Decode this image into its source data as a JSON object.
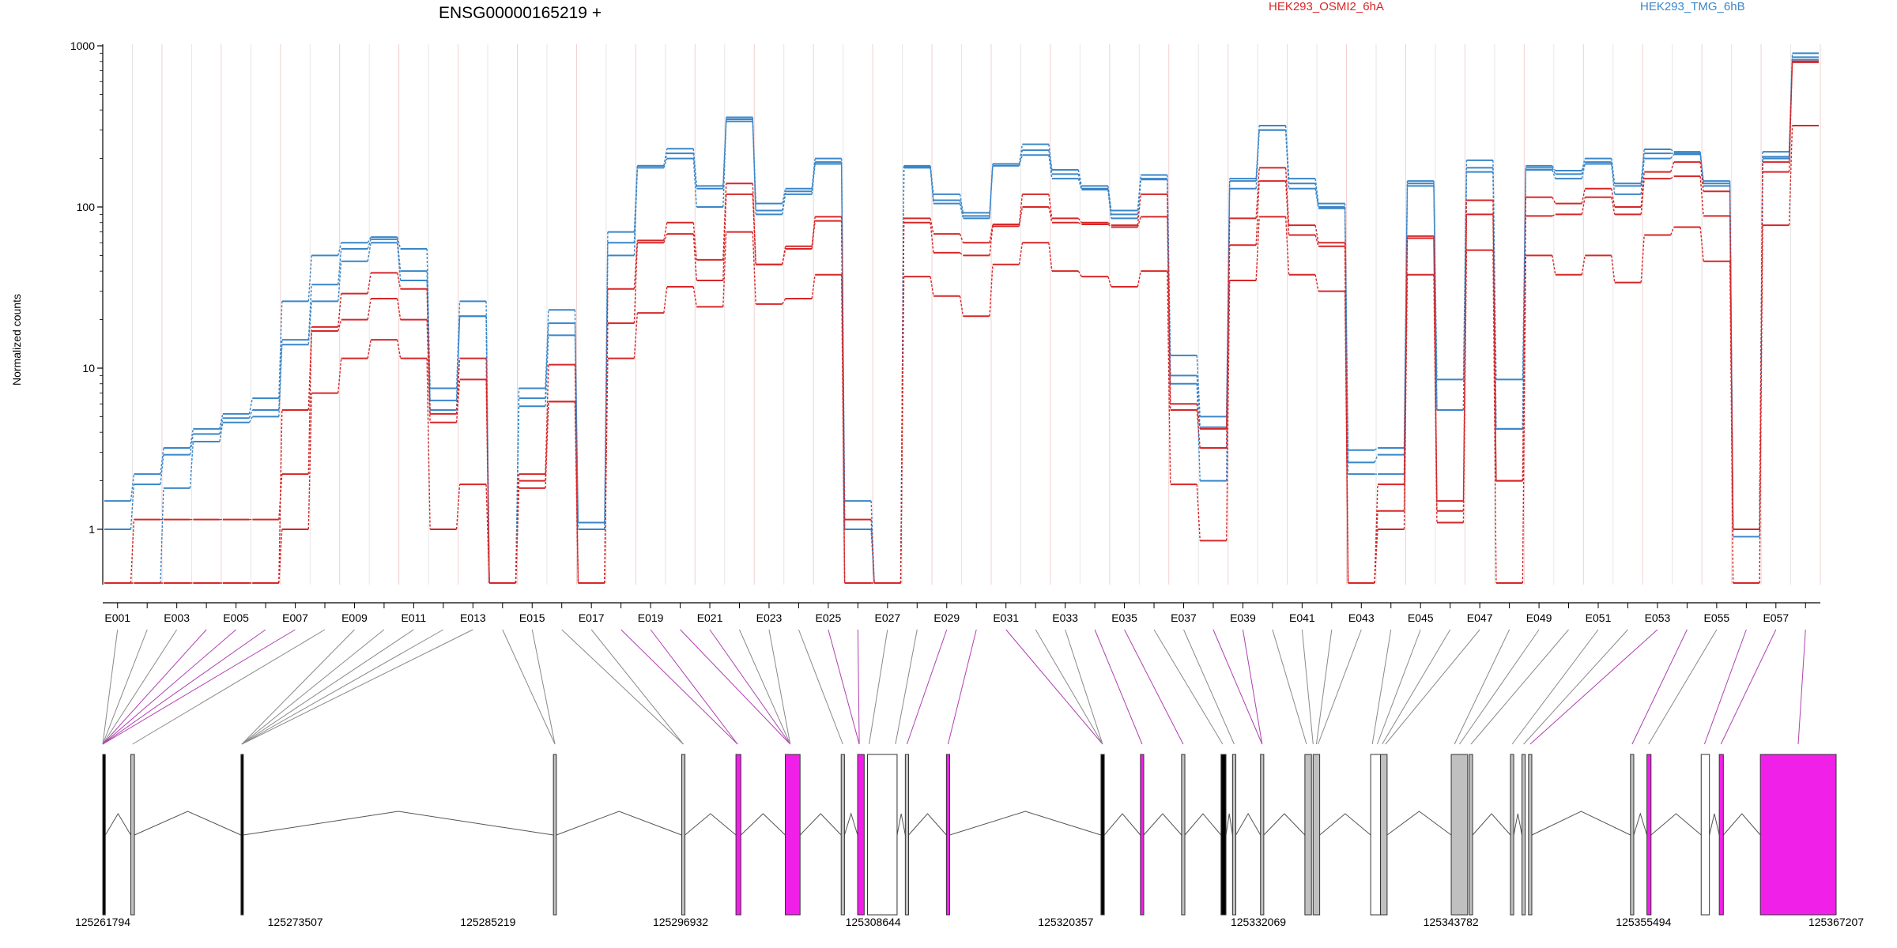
{
  "title": "ENSG00000165219 +",
  "legend": [
    {
      "name": "HEK293_OSMI2_6hA",
      "color": "#d62728"
    },
    {
      "name": "HEK293_TMG_6hB",
      "color": "#3a86c8"
    }
  ],
  "colors": {
    "red_series": "#d62728",
    "blue_series": "#3a86c8",
    "exon_highlight": "#f020e8",
    "exon_grey": "#c0c0c0"
  },
  "chart_data": {
    "type": "line",
    "subtype": "step",
    "ylabel": "Normalized counts",
    "yscale": "log",
    "ylim": [
      0.5,
      1000
    ],
    "yticks": [
      1,
      10,
      100,
      1000
    ],
    "ytick_labels": [
      "1",
      "10",
      "100",
      "1000"
    ],
    "x_tick_labels": [
      "E001",
      "E003",
      "E005",
      "E007",
      "E009",
      "E011",
      "E013",
      "E015",
      "E017",
      "E019",
      "E021",
      "E023",
      "E025",
      "E027",
      "E029",
      "E031",
      "E033",
      "E035",
      "E037",
      "E039",
      "E041",
      "E043",
      "E045",
      "E047",
      "E049",
      "E051",
      "E053",
      "E055",
      "E057"
    ],
    "exons": [
      "E001",
      "E002",
      "E003",
      "E004",
      "E005",
      "E006",
      "E007",
      "E008",
      "E009",
      "E010",
      "E011",
      "E012",
      "E013",
      "E014",
      "E015",
      "E016",
      "E017",
      "E018",
      "E019",
      "E020",
      "E021",
      "E022",
      "E023",
      "E024",
      "E025",
      "E026",
      "E027",
      "E028",
      "E029",
      "E030",
      "E031",
      "E032",
      "E033",
      "E034",
      "E035",
      "E036",
      "E037",
      "E038",
      "E039",
      "E040",
      "E041",
      "E042",
      "E043",
      "E044",
      "E045",
      "E046",
      "E047",
      "E048",
      "E049",
      "E050",
      "E051",
      "E052",
      "E053",
      "E054",
      "E055",
      "E056",
      "E057",
      "E058"
    ],
    "series": [
      {
        "group": "HEK293_TMG_6hB",
        "values": [
          1.5,
          2.2,
          3.2,
          4.2,
          5.2,
          6.5,
          26,
          50,
          60,
          65,
          55,
          7.5,
          26,
          0.5,
          7.5,
          23,
          1.1,
          70,
          180,
          230,
          135,
          360,
          105,
          130,
          200,
          1.5,
          0.5,
          180,
          120,
          92,
          185,
          245,
          170,
          135,
          95,
          158,
          12,
          5,
          150,
          320,
          150,
          105,
          3.1,
          3.2,
          145,
          8.5,
          195,
          8.5,
          180,
          168,
          200,
          140,
          228,
          220,
          145,
          1.0,
          220,
          900
        ]
      },
      {
        "group": "HEK293_TMG_6hB",
        "values": [
          1.0,
          1.9,
          2.9,
          3.9,
          4.9,
          5.5,
          15,
          33,
          55,
          63,
          40,
          6.3,
          21,
          0.5,
          6.5,
          19,
          1.0,
          60,
          180,
          215,
          130,
          350,
          95,
          125,
          190,
          1.0,
          0.5,
          178,
          110,
          88,
          185,
          225,
          160,
          130,
          90,
          150,
          9,
          4.3,
          145,
          300,
          140,
          100,
          2.6,
          2.9,
          140,
          5.5,
          175,
          4.2,
          175,
          160,
          190,
          135,
          215,
          215,
          140,
          1.0,
          205,
          850
        ]
      },
      {
        "group": "HEK293_TMG_6hB",
        "values": [
          0.5,
          0.5,
          1.8,
          3.5,
          4.6,
          5.0,
          14,
          26,
          46,
          60,
          35,
          5.5,
          21,
          0.5,
          5.8,
          16,
          1.0,
          50,
          175,
          200,
          100,
          340,
          90,
          120,
          185,
          1.0,
          0.5,
          175,
          105,
          85,
          180,
          210,
          150,
          128,
          85,
          148,
          8,
          2.0,
          130,
          300,
          130,
          98,
          2.2,
          2.2,
          135,
          5.5,
          165,
          4.2,
          170,
          150,
          185,
          120,
          200,
          212,
          135,
          0.9,
          200,
          820
        ]
      },
      {
        "group": "HEK293_OSMI2_6hA",
        "values": [
          0.5,
          1.15,
          1.15,
          1.15,
          1.15,
          1.15,
          2.2,
          18,
          29,
          39,
          31,
          5.2,
          11.5,
          0.5,
          2.2,
          10.5,
          0.5,
          31,
          62,
          80,
          47,
          140,
          44,
          57,
          87,
          1.15,
          0.5,
          85,
          68,
          60,
          78,
          120,
          85,
          80,
          77,
          120,
          6.0,
          4.2,
          85,
          175,
          77,
          60,
          0.5,
          1.9,
          66,
          1.5,
          110,
          2.0,
          115,
          105,
          130,
          100,
          165,
          190,
          125,
          1.0,
          190,
          800
        ]
      },
      {
        "group": "HEK293_OSMI2_6hA",
        "values": [
          0.5,
          0.5,
          0.5,
          0.5,
          0.5,
          0.5,
          5.5,
          17,
          20,
          27,
          20,
          4.6,
          8.5,
          0.5,
          2.0,
          6.2,
          0.5,
          19,
          60,
          68,
          35,
          120,
          44,
          55,
          82,
          0.5,
          0.5,
          80,
          52,
          50,
          76,
          100,
          80,
          78,
          75,
          87,
          5.5,
          3.2,
          58,
          145,
          67,
          57,
          0.5,
          1.3,
          64,
          1.3,
          90,
          2.0,
          88,
          90,
          115,
          90,
          150,
          155,
          88,
          1.0,
          165,
          790
        ]
      },
      {
        "group": "HEK293_OSMI2_6hA",
        "values": [
          0.5,
          0.5,
          0.5,
          0.5,
          0.5,
          0.5,
          1.0,
          7,
          11.5,
          15,
          11.5,
          1.0,
          1.9,
          0.5,
          1.8,
          6.2,
          0.5,
          11.5,
          22,
          32,
          24,
          70,
          25,
          27,
          38,
          0.5,
          0.5,
          37,
          28,
          21,
          44,
          60,
          40,
          37,
          32,
          40,
          1.9,
          0.85,
          35,
          87,
          38,
          30,
          0.5,
          1.0,
          38,
          1.1,
          54,
          0.5,
          50,
          38,
          50,
          34,
          67,
          75,
          46,
          0.5,
          77,
          320
        ]
      }
    ]
  },
  "gene_model": {
    "coord_labels": [
      "125261794",
      "125273507",
      "125285219",
      "125296932",
      "125308644",
      "125320357",
      "125332069",
      "125343782",
      "125355494",
      "125367207"
    ]
  }
}
